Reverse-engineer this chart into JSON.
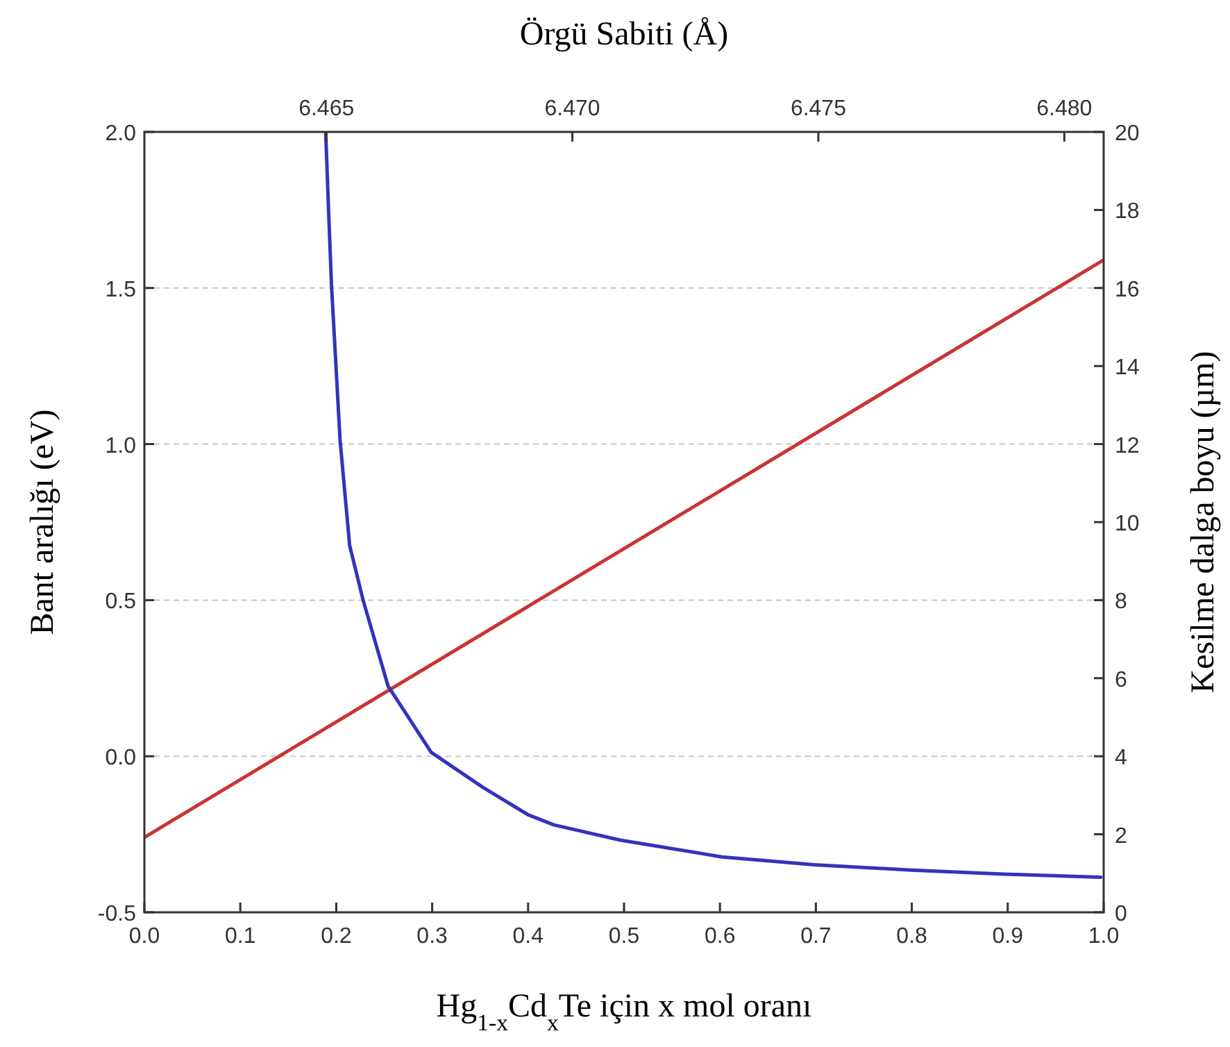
{
  "chart_data": {
    "type": "line",
    "xlabel": "Hg$_{1-x}$Cd$_{x}$Te için x mol oranı",
    "ylabel": "Bant aralığı (eV)",
    "y2label": "Kesilme dalga boyu (µm)",
    "x2label": "Örgü Sabiti (Å)",
    "xlim": [
      0,
      1
    ],
    "xticks": [
      {
        "value": 0,
        "label": "0.0"
      },
      {
        "value": 0.1,
        "label": "0.1"
      },
      {
        "value": 0.2,
        "label": "0.2"
      },
      {
        "value": 0.3,
        "label": "0.3"
      },
      {
        "value": 0.4,
        "label": "0.4"
      },
      {
        "value": 0.5,
        "label": "0.5"
      },
      {
        "value": 0.6,
        "label": "0.6"
      },
      {
        "value": 0.7,
        "label": "0.7"
      },
      {
        "value": 0.8,
        "label": "0.8"
      },
      {
        "value": 0.9,
        "label": "0.9"
      },
      {
        "value": 1,
        "label": "1.0"
      }
    ],
    "ylim": [
      -0.5,
      2
    ],
    "yticks": [
      -0.5,
      {
        "value": 0,
        "label": "0.0"
      },
      0.5,
      {
        "value": 1,
        "label": "1.0"
      },
      1.5,
      {
        "value": 2,
        "label": "2.0"
      }
    ],
    "y2lim": [
      0,
      20
    ],
    "y2ticks": [
      0,
      2,
      4,
      6,
      8,
      10,
      12,
      14,
      16,
      18,
      20
    ],
    "x2lim": [
      6.4613,
      6.4808
    ],
    "x2ticks": [
      {
        "value": 6.465,
        "label": "6.465"
      },
      {
        "value": 6.47,
        "label": "6.470"
      },
      {
        "value": 6.475,
        "label": "6.475"
      },
      {
        "value": 6.48,
        "label": "6.480"
      }
    ],
    "grid": "y",
    "series": [
      {
        "color": "#cc3333",
        "x": [
          0,
          1
        ],
        "values": [
          -0.26,
          1.59
        ]
      },
      {
        "color": "#3333bb",
        "axis": "y2",
        "x": [
          0.189,
          0.192,
          0.195,
          0.204,
          0.214,
          0.228,
          0.254,
          0.299,
          0.353,
          0.4,
          0.427,
          0.496,
          0.602,
          0.698,
          0.8,
          0.896,
          0.997
        ],
        "values": [
          20,
          18,
          16.1,
          12.1,
          9.4,
          8.0,
          5.8,
          4.1,
          3.2,
          2.5,
          2.24,
          1.85,
          1.42,
          1.22,
          1.08,
          0.98,
          0.9
        ]
      }
    ]
  }
}
